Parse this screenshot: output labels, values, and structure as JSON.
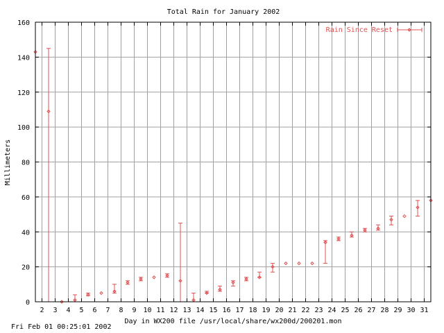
{
  "colors": {
    "series": "#e05050",
    "grid": "#a0a0a0",
    "axis": "#000000",
    "background": "#ffffff"
  },
  "footer": "Fri Feb 01 00:25:01 2002",
  "chart_data": {
    "type": "errorbar",
    "title": "Total Rain for January 2002",
    "xlabel": "Day in WX200 file /usr/local/share/wx200d/200201.mon",
    "ylabel": "Millimeters",
    "xlim": [
      1.5,
      31.5
    ],
    "ylim": [
      0,
      160
    ],
    "xticks": [
      2,
      3,
      4,
      5,
      6,
      7,
      8,
      9,
      10,
      11,
      12,
      13,
      14,
      15,
      16,
      17,
      18,
      19,
      20,
      21,
      22,
      23,
      24,
      25,
      26,
      27,
      28,
      29,
      30,
      31
    ],
    "yticks": [
      0,
      20,
      40,
      60,
      80,
      100,
      120,
      140,
      160
    ],
    "grid": true,
    "legend": "top-right",
    "series": [
      {
        "name": "Rain Since Reset",
        "points": [
          {
            "x": 1.5,
            "y": 143,
            "low": 143,
            "high": 143
          },
          {
            "x": 2.5,
            "y": 109,
            "low": 0,
            "high": 145
          },
          {
            "x": 3.5,
            "y": 0,
            "low": 0,
            "high": 0
          },
          {
            "x": 4.5,
            "y": 1,
            "low": 0,
            "high": 4
          },
          {
            "x": 5.5,
            "y": 4,
            "low": 3.5,
            "high": 5
          },
          {
            "x": 6.5,
            "y": 5,
            "low": 5,
            "high": 5
          },
          {
            "x": 7.5,
            "y": 6,
            "low": 5,
            "high": 10
          },
          {
            "x": 8.5,
            "y": 11,
            "low": 10,
            "high": 12
          },
          {
            "x": 9.5,
            "y": 13,
            "low": 12,
            "high": 14
          },
          {
            "x": 10.5,
            "y": 14,
            "low": 14,
            "high": 14
          },
          {
            "x": 11.5,
            "y": 15,
            "low": 14,
            "high": 16
          },
          {
            "x": 12.5,
            "y": 12,
            "low": 0,
            "high": 45
          },
          {
            "x": 13.5,
            "y": 1,
            "low": 0,
            "high": 5
          },
          {
            "x": 14.5,
            "y": 5,
            "low": 5,
            "high": 6
          },
          {
            "x": 15.5,
            "y": 7,
            "low": 6,
            "high": 9
          },
          {
            "x": 16.5,
            "y": 11,
            "low": 9,
            "high": 12
          },
          {
            "x": 17.5,
            "y": 13,
            "low": 12,
            "high": 14
          },
          {
            "x": 18.5,
            "y": 14,
            "low": 14,
            "high": 17
          },
          {
            "x": 19.5,
            "y": 20,
            "low": 17,
            "high": 22
          },
          {
            "x": 20.5,
            "y": 22,
            "low": 22,
            "high": 22
          },
          {
            "x": 21.5,
            "y": 22,
            "low": 22,
            "high": 22
          },
          {
            "x": 22.5,
            "y": 22,
            "low": 22,
            "high": 22
          },
          {
            "x": 23.5,
            "y": 34,
            "low": 22,
            "high": 35
          },
          {
            "x": 24.5,
            "y": 36,
            "low": 35,
            "high": 37
          },
          {
            "x": 25.5,
            "y": 38,
            "low": 37,
            "high": 40
          },
          {
            "x": 26.5,
            "y": 41,
            "low": 40,
            "high": 42
          },
          {
            "x": 27.5,
            "y": 42,
            "low": 41,
            "high": 44
          },
          {
            "x": 28.5,
            "y": 47,
            "low": 44,
            "high": 49
          },
          {
            "x": 29.5,
            "y": 49,
            "low": 49,
            "high": 49
          },
          {
            "x": 30.5,
            "y": 54,
            "low": 49,
            "high": 58
          },
          {
            "x": 31.5,
            "y": 58,
            "low": 58,
            "high": 58
          }
        ]
      }
    ]
  }
}
